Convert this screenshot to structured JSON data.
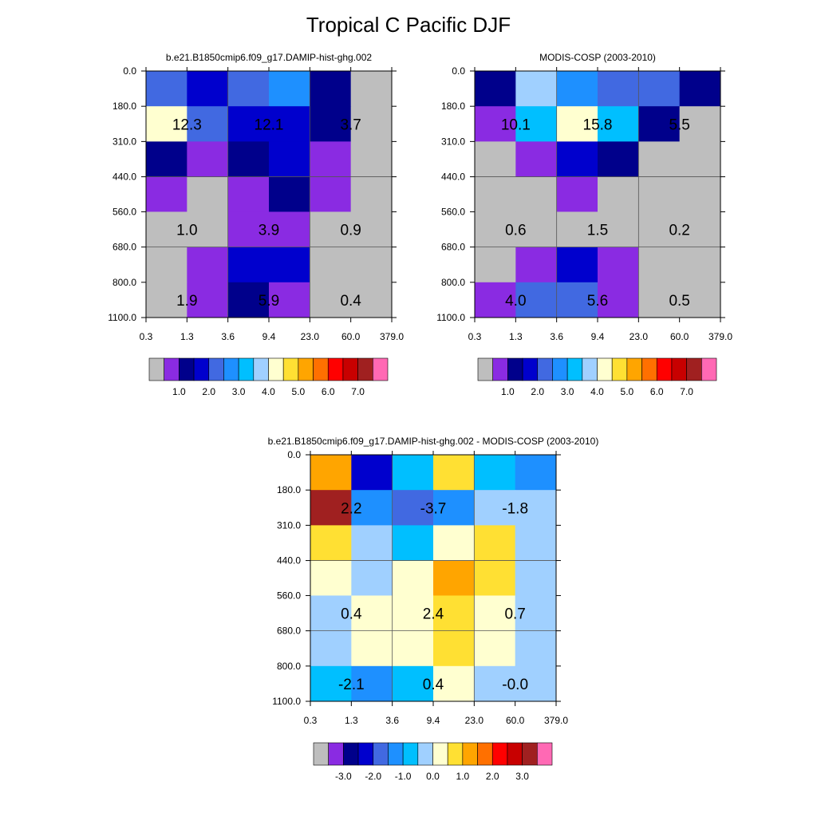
{
  "figure": {
    "title": "Tropical C Pacific DJF"
  },
  "palettes": {
    "abs": [
      "#bebebe",
      "#8a2be2",
      "#00008b",
      "#0000cd",
      "#4169e1",
      "#1e90ff",
      "#00bfff",
      "#a0d0ff",
      "#ffffd0",
      "#ffe033",
      "#ffa500",
      "#ff7000",
      "#ff0000",
      "#c80000",
      "#a02020",
      "#ff69b4"
    ],
    "diff": [
      "#bebebe",
      "#8a2be2",
      "#00008b",
      "#0000cd",
      "#4169e1",
      "#1e90ff",
      "#00bfff",
      "#a0d0ff",
      "#ffffd0",
      "#ffe033",
      "#ffa500",
      "#ff7000",
      "#ff0000",
      "#c80000",
      "#a02020",
      "#ff69b4"
    ]
  },
  "chart_data": [
    {
      "type": "heatmap",
      "title": "b.e21.B1850cmip6.f09_g17.DAMIP-hist-ghg.002",
      "x_ticks": [
        "0.3",
        "1.3",
        "3.6",
        "9.4",
        "23.0",
        "60.0",
        "379.0"
      ],
      "y_ticks": [
        "0.0",
        "180.0",
        "310.0",
        "440.0",
        "560.0",
        "680.0",
        "800.0",
        "1100.0"
      ],
      "cells": [
        [
          4,
          3,
          4,
          5,
          2,
          0
        ],
        [
          8,
          4,
          3,
          3,
          2,
          0
        ],
        [
          2,
          1,
          2,
          3,
          1,
          0
        ],
        [
          1,
          0,
          1,
          2,
          1,
          0
        ],
        [
          0,
          0,
          1,
          1,
          0,
          0
        ],
        [
          0,
          1,
          3,
          3,
          0,
          0
        ],
        [
          0,
          1,
          2,
          1,
          0,
          0
        ]
      ],
      "block_labels": [
        [
          "12.3",
          "12.1",
          "3.7"
        ],
        [
          "1.0",
          "3.9",
          "0.9"
        ],
        [
          "1.9",
          "5.9",
          "0.4"
        ]
      ],
      "colorbar": {
        "palette": "abs",
        "labels": [
          "1.0",
          "2.0",
          "3.0",
          "4.0",
          "5.0",
          "6.0",
          "7.0"
        ]
      }
    },
    {
      "type": "heatmap",
      "title": "MODIS-COSP (2003-2010)",
      "x_ticks": [
        "0.3",
        "1.3",
        "3.6",
        "9.4",
        "23.0",
        "60.0",
        "379.0"
      ],
      "y_ticks": [
        "0.0",
        "180.0",
        "310.0",
        "440.0",
        "560.0",
        "680.0",
        "800.0",
        "1100.0"
      ],
      "cells": [
        [
          2,
          7,
          5,
          4,
          4,
          2
        ],
        [
          1,
          6,
          8,
          6,
          2,
          0
        ],
        [
          0,
          1,
          3,
          2,
          0,
          0
        ],
        [
          0,
          0,
          1,
          0,
          0,
          0
        ],
        [
          0,
          0,
          0,
          0,
          0,
          0
        ],
        [
          0,
          1,
          3,
          1,
          0,
          0
        ],
        [
          1,
          4,
          4,
          1,
          0,
          0
        ]
      ],
      "block_labels": [
        [
          "10.1",
          "15.8",
          "5.5"
        ],
        [
          "0.6",
          "1.5",
          "0.2"
        ],
        [
          "4.0",
          "5.6",
          "0.5"
        ]
      ],
      "colorbar": {
        "palette": "abs",
        "labels": [
          "1.0",
          "2.0",
          "3.0",
          "4.0",
          "5.0",
          "6.0",
          "7.0"
        ]
      }
    },
    {
      "type": "heatmap",
      "title": "b.e21.B1850cmip6.f09_g17.DAMIP-hist-ghg.002 - MODIS-COSP (2003-2010)",
      "x_ticks": [
        "0.3",
        "1.3",
        "3.6",
        "9.4",
        "23.0",
        "60.0",
        "379.0"
      ],
      "y_ticks": [
        "0.0",
        "180.0",
        "310.0",
        "440.0",
        "560.0",
        "680.0",
        "800.0",
        "1100.0"
      ],
      "cells": [
        [
          10,
          3,
          6,
          9,
          6,
          5
        ],
        [
          14,
          5,
          4,
          5,
          7,
          7
        ],
        [
          9,
          7,
          6,
          8,
          9,
          7
        ],
        [
          8,
          7,
          8,
          10,
          9,
          7
        ],
        [
          7,
          8,
          8,
          9,
          8,
          7
        ],
        [
          7,
          8,
          8,
          9,
          8,
          7
        ],
        [
          6,
          5,
          6,
          8,
          7,
          7
        ]
      ],
      "block_labels": [
        [
          "2.2",
          "-3.7",
          "-1.8"
        ],
        [
          "0.4",
          "2.4",
          "0.7"
        ],
        [
          "-2.1",
          "0.4",
          "-0.0"
        ]
      ],
      "colorbar": {
        "palette": "diff",
        "labels": [
          "-3.0",
          "-2.0",
          "-1.0",
          "0.0",
          "1.0",
          "2.0",
          "3.0"
        ]
      }
    }
  ]
}
